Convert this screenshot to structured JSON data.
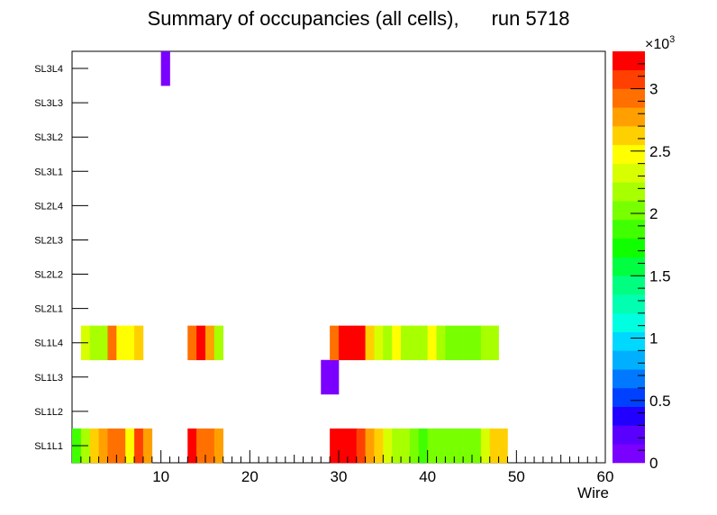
{
  "chart_data": {
    "type": "heatmap",
    "title": "Summary of occupancies (all cells),",
    "run_label": "run 5718",
    "xlabel": "Wire",
    "ylabel": "",
    "x_range": [
      0,
      60
    ],
    "x_ticks": [
      10,
      20,
      30,
      40,
      50,
      60
    ],
    "y_categories": [
      "SL1L1",
      "SL1L2",
      "SL1L3",
      "SL1L4",
      "SL2L1",
      "SL2L2",
      "SL2L3",
      "SL2L4",
      "SL3L1",
      "SL3L2",
      "SL3L3",
      "SL3L4"
    ],
    "z_range": [
      0,
      3300
    ],
    "z_ticks": [
      0,
      500,
      1000,
      1500,
      2000,
      2500,
      3000
    ],
    "z_tick_labels": [
      "0",
      "0.5",
      "1",
      "1.5",
      "2",
      "2.5",
      "3"
    ],
    "z_multiplier_base": "×10",
    "z_multiplier_exp": "3",
    "palette": [
      "#7a00ff",
      "#5a00ff",
      "#2200ff",
      "#0040ff",
      "#0078ff",
      "#00b0ff",
      "#00d8ff",
      "#00ffe0",
      "#00ffb0",
      "#00ff80",
      "#00ff40",
      "#10ff00",
      "#40ff00",
      "#78ff00",
      "#a8ff00",
      "#d8ff00",
      "#ffff00",
      "#ffd000",
      "#ffa000",
      "#ff7000",
      "#ff4000",
      "#ff0000"
    ],
    "rows": [
      {
        "layer": "SL1L1",
        "start_wire": 1,
        "values": [
          1850,
          2200,
          2650,
          2800,
          2950,
          2950,
          2450,
          3100,
          2750,
          null,
          null,
          null,
          null,
          3150,
          2900,
          2900,
          2700,
          null,
          null,
          null,
          null,
          null,
          null,
          null,
          null,
          null,
          null,
          null,
          null,
          3150,
          3150,
          3150,
          3000,
          2750,
          2550,
          2350,
          2250,
          2200,
          2050,
          1800,
          1950,
          2000,
          2050,
          2050,
          2050,
          2000,
          2300,
          2600,
          2600
        ]
      },
      {
        "layer": "SL1L3",
        "start_wire": 29,
        "values": [
          100,
          100
        ]
      },
      {
        "layer": "SL1L4",
        "start_wire": 2,
        "values": [
          2300,
          2150,
          2150,
          2950,
          2450,
          2450,
          2600,
          null,
          null,
          null,
          null,
          null,
          2850,
          3150,
          2750,
          2200,
          null,
          null,
          null,
          null,
          null,
          null,
          null,
          null,
          null,
          null,
          null,
          null,
          2850,
          3150,
          3150,
          3150,
          2600,
          2350,
          2200,
          2400,
          2200,
          2100,
          2200,
          2400,
          2200,
          2050,
          2050,
          2000,
          2000,
          2250,
          2250
        ]
      },
      {
        "layer": "SL3L4",
        "start_wire": 11,
        "values": [
          100
        ]
      }
    ]
  }
}
